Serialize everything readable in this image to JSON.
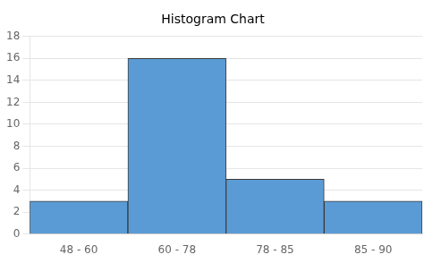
{
  "chart_data": {
    "type": "bar",
    "title": "Histogram Chart",
    "categories": [
      "48 - 60",
      "60 - 78",
      "78 - 85",
      "85 - 90"
    ],
    "values": [
      3,
      16,
      5,
      3
    ],
    "color": "#5B9BD5",
    "ylim": [
      0,
      18
    ],
    "yticks": [
      0,
      2,
      4,
      6,
      8,
      10,
      12,
      14,
      16,
      18
    ],
    "grid": true
  }
}
